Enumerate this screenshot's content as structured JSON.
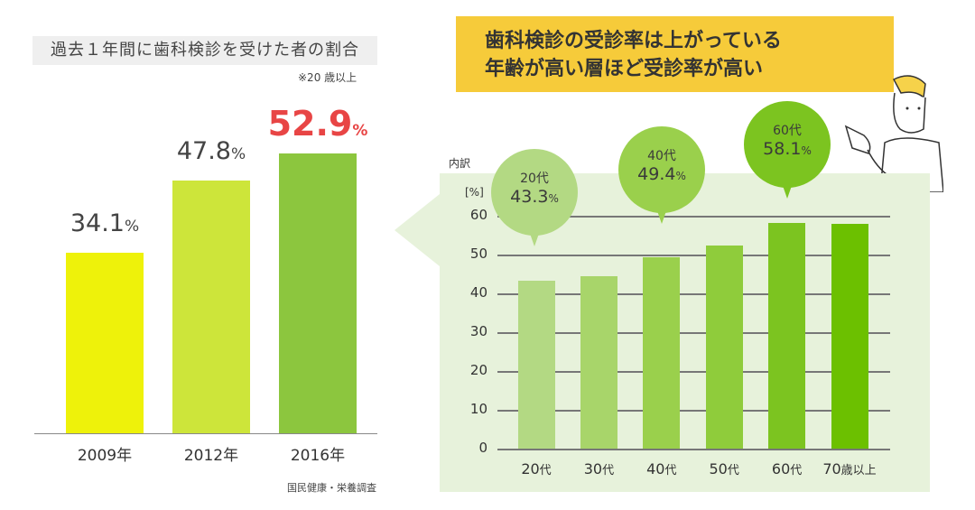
{
  "banner": {
    "line1": "歯科検診の受診率は上がっている",
    "line2": "年齢が高い層ほど受診率が高い",
    "color": "#f6cb3a"
  },
  "chart_data": [
    {
      "type": "bar",
      "title": "過去１年間に歯科検診を受けた者の割合",
      "note": "※20 歳以上",
      "source": "国民健康・栄養調査",
      "categories": [
        "2009年",
        "2012年",
        "2016年"
      ],
      "values": [
        34.1,
        47.8,
        52.9
      ],
      "labels": [
        "34.1",
        "47.8",
        "52.9"
      ],
      "unit": "%",
      "colors": [
        "#eef20a",
        "#cde53a",
        "#8cc63e"
      ],
      "highlight_color": "#e84545",
      "ylim": [
        0,
        60
      ]
    },
    {
      "type": "bar",
      "title": "内訳",
      "ylabel": "[%]",
      "categories": [
        "20代",
        "30代",
        "40代",
        "50代",
        "60代",
        "70歳以上"
      ],
      "values": [
        43.3,
        44.5,
        49.4,
        52.3,
        58.1,
        57.8
      ],
      "yticks": [
        "0",
        "10",
        "20",
        "30",
        "40",
        "50",
        "60"
      ],
      "ylim": [
        0,
        60
      ],
      "grid": true,
      "colors": [
        "#b3d983",
        "#a8d56a",
        "#9ad04c",
        "#8fcc3b",
        "#7cc420",
        "#6cc000"
      ],
      "callouts": [
        {
          "label": "20代",
          "value": "43.3",
          "unit": "%",
          "color": "#b3d983"
        },
        {
          "label": "40代",
          "value": "49.4",
          "unit": "%",
          "color": "#9ad04c"
        },
        {
          "label": "60代",
          "value": "58.1",
          "unit": "%",
          "color": "#7cc420"
        }
      ]
    }
  ]
}
